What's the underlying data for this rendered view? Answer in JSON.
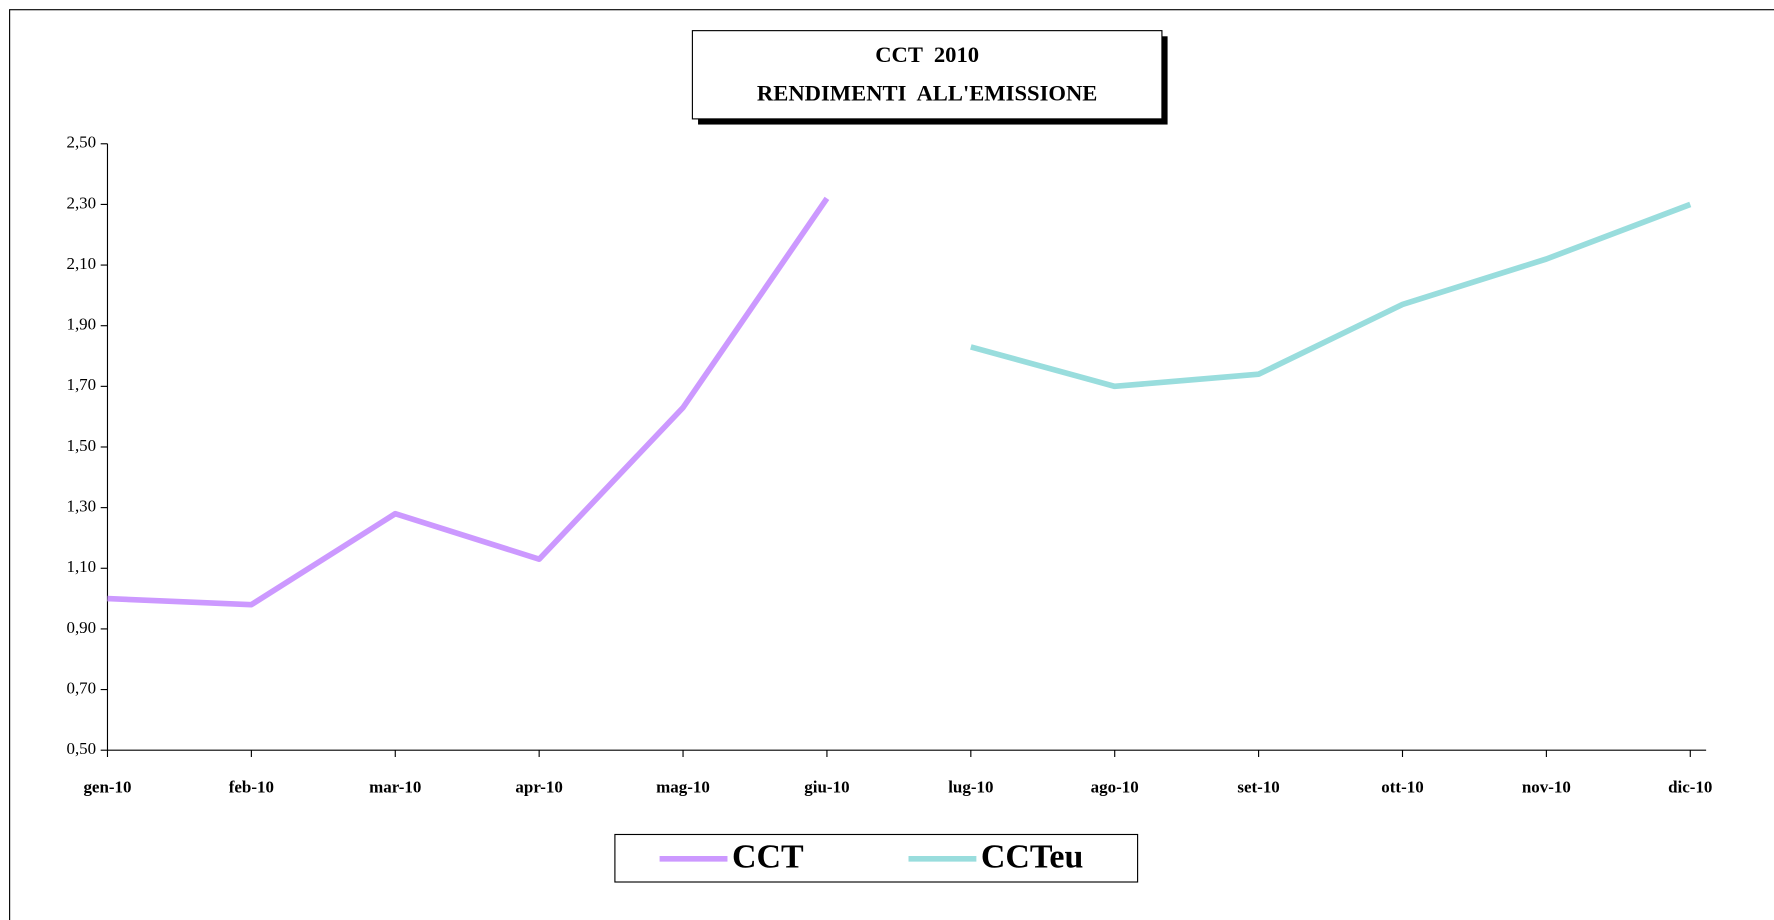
{
  "chart_data": {
    "type": "line",
    "title": "CCT  2010",
    "subtitle": "RENDIMENTI  ALL'EMISSIONE",
    "categories": [
      "gen-10",
      "feb-10",
      "mar-10",
      "apr-10",
      "mag-10",
      "giu-10",
      "lug-10",
      "ago-10",
      "set-10",
      "ott-10",
      "nov-10",
      "dic-10"
    ],
    "series": [
      {
        "name": "CCT",
        "color": "#cc99ff",
        "values": [
          1.0,
          0.98,
          1.28,
          1.13,
          1.63,
          2.32,
          null,
          null,
          null,
          null,
          null,
          null
        ]
      },
      {
        "name": "CCTeu",
        "color": "#99dddd",
        "values": [
          null,
          null,
          null,
          null,
          null,
          null,
          1.83,
          1.7,
          1.74,
          1.97,
          2.12,
          2.3
        ]
      }
    ],
    "ylim": [
      0.5,
      2.5
    ],
    "yticks": [
      {
        "value": 0.5,
        "label": "0,50"
      },
      {
        "value": 0.7,
        "label": "0,70"
      },
      {
        "value": 0.9,
        "label": "0,90"
      },
      {
        "value": 1.1,
        "label": "1,10"
      },
      {
        "value": 1.3,
        "label": "1,30"
      },
      {
        "value": 1.5,
        "label": "1,50"
      },
      {
        "value": 1.7,
        "label": "1,70"
      },
      {
        "value": 1.9,
        "label": "1,90"
      },
      {
        "value": 2.1,
        "label": "2,10"
      },
      {
        "value": 2.3,
        "label": "2,30"
      },
      {
        "value": 2.5,
        "label": "2,50"
      }
    ],
    "grid": false,
    "legend": "bottom"
  }
}
